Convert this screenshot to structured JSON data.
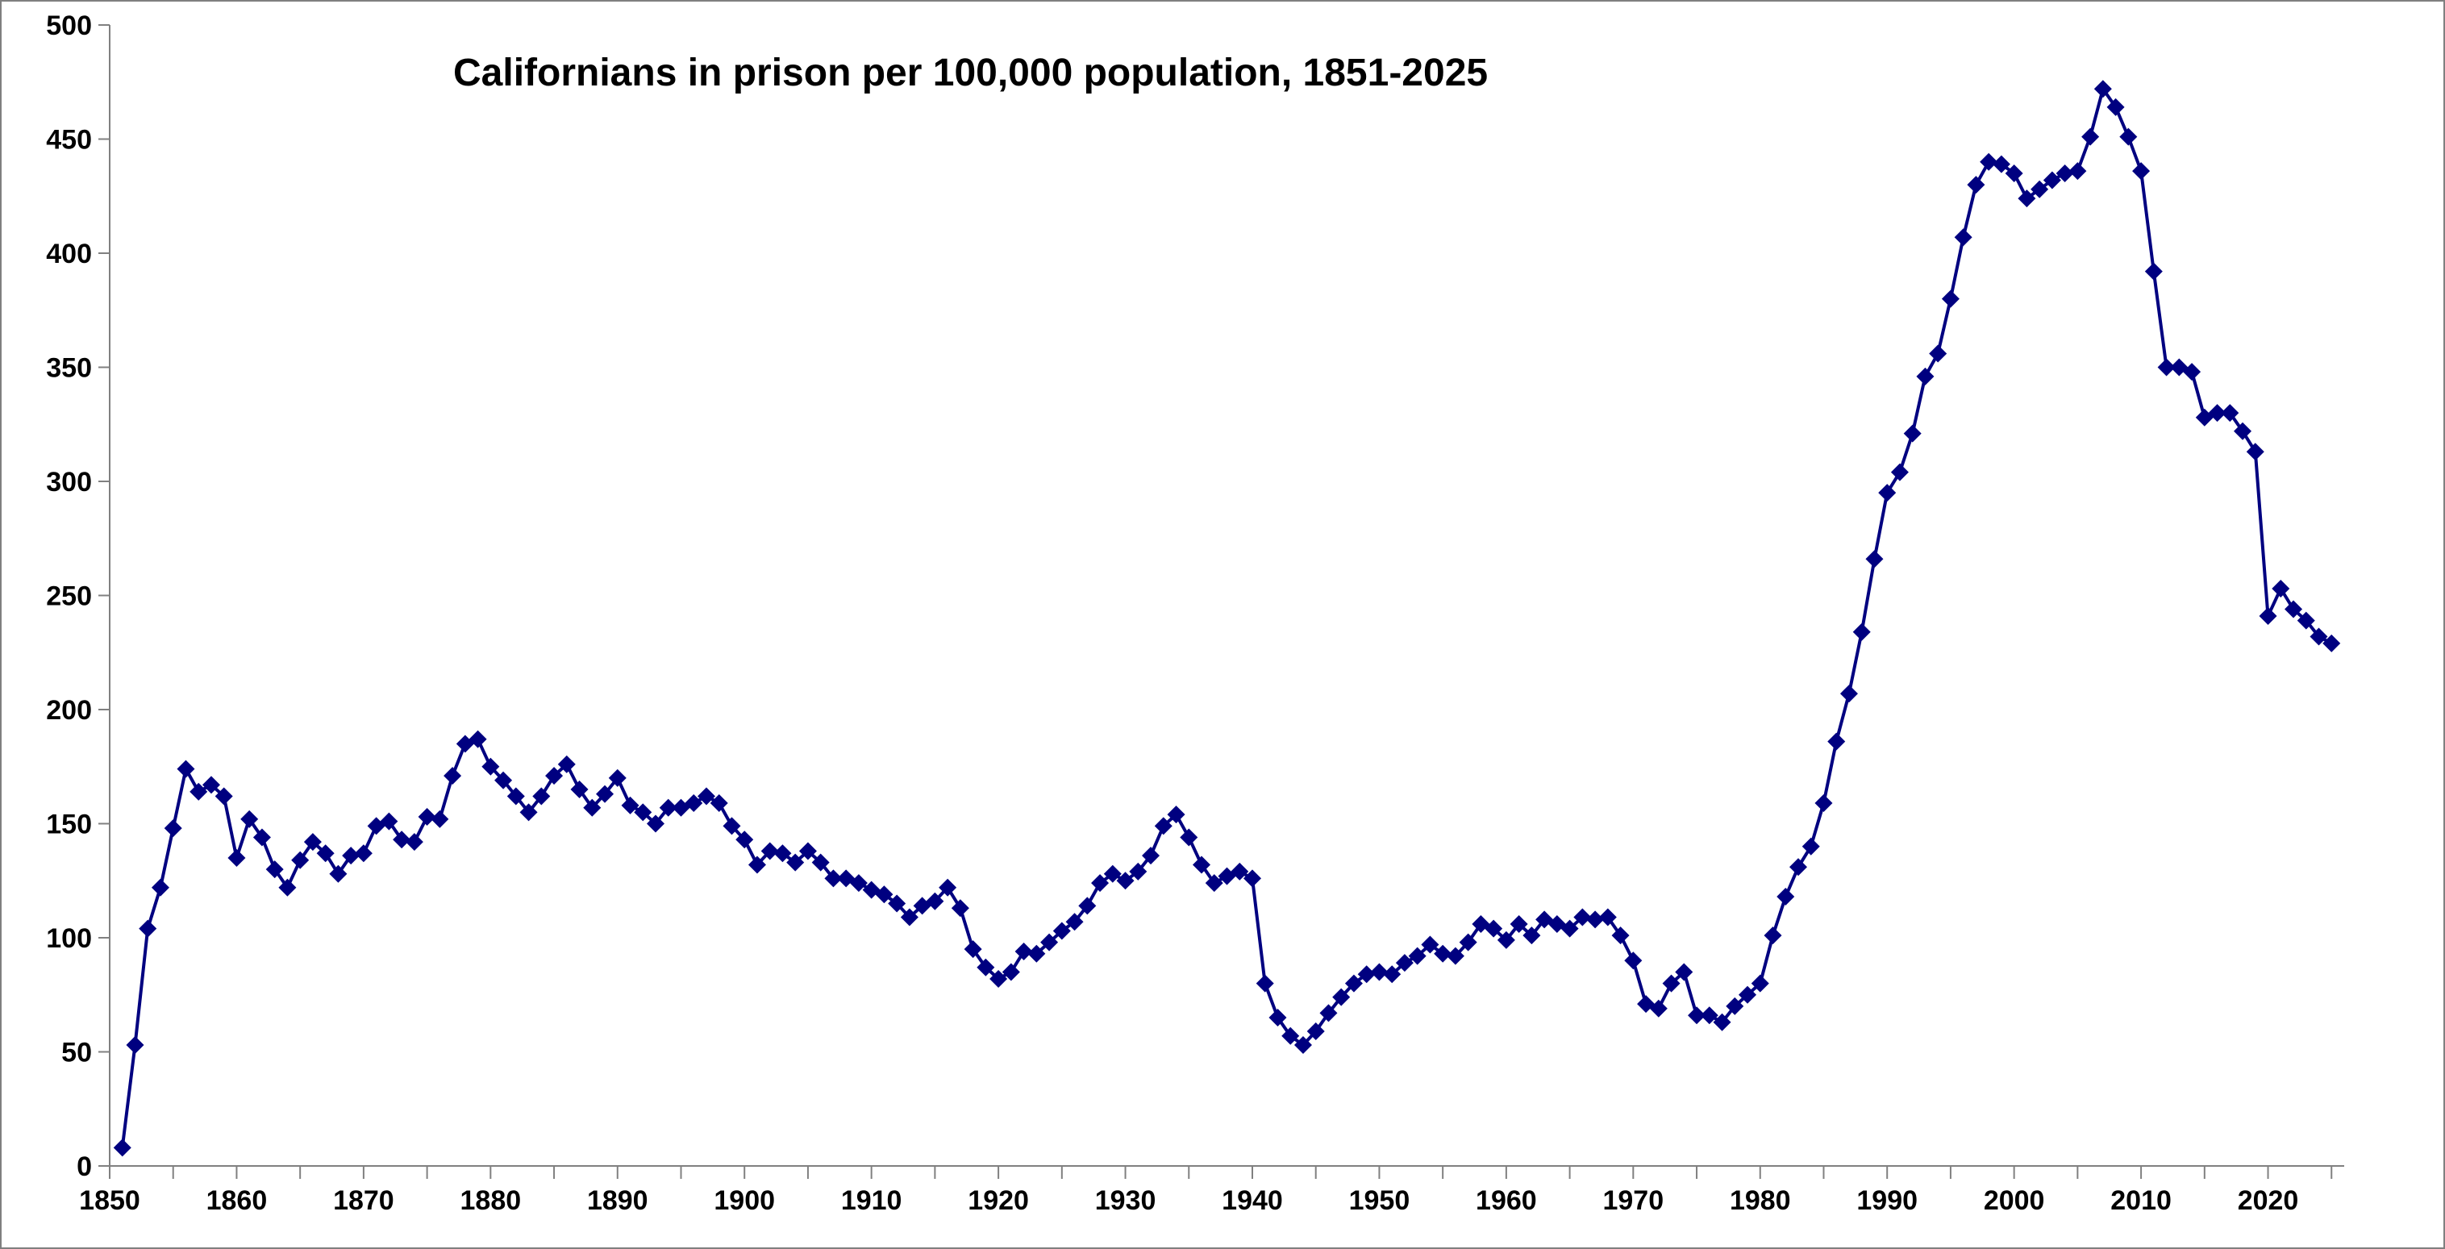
{
  "chart_data": {
    "type": "line",
    "title": "Californians in prison per 100,000 population, 1851-2025",
    "xlabel": "",
    "ylabel": "",
    "xlim": [
      1850,
      2026
    ],
    "ylim": [
      0,
      500
    ],
    "x_ticks": [
      1850,
      1860,
      1870,
      1880,
      1890,
      1900,
      1910,
      1920,
      1930,
      1940,
      1950,
      1960,
      1970,
      1980,
      1990,
      2000,
      2010,
      2020
    ],
    "y_ticks": [
      0,
      50,
      100,
      150,
      200,
      250,
      300,
      350,
      400,
      450,
      500
    ],
    "x_tick_labels": [
      "1850",
      "1860",
      "1870",
      "1880",
      "1890",
      "1900",
      "1910",
      "1920",
      "1930",
      "1940",
      "1950",
      "1960",
      "1970",
      "1980",
      "1990",
      "2000",
      "2010",
      "2020"
    ],
    "y_tick_labels": [
      "0",
      "50",
      "100",
      "150",
      "200",
      "250",
      "300",
      "350",
      "400",
      "450",
      "500"
    ],
    "grid": false,
    "legend": "none",
    "line_color": "#000080",
    "marker": "diamond",
    "series": [
      {
        "x": [
          1851,
          1852,
          1853,
          1854,
          1855,
          1856,
          1857,
          1858,
          1859,
          1860,
          1861,
          1862,
          1863,
          1864,
          1865,
          1866,
          1867,
          1868,
          1869,
          1870,
          1871,
          1872,
          1873,
          1874,
          1875,
          1876,
          1877,
          1878,
          1879,
          1880,
          1881,
          1882,
          1883,
          1884,
          1885,
          1886,
          1887,
          1888,
          1889,
          1890,
          1891,
          1892,
          1893,
          1894,
          1895,
          1896,
          1897,
          1898,
          1899,
          1900,
          1901,
          1902,
          1903,
          1904,
          1905,
          1906,
          1907,
          1908,
          1909,
          1910,
          1911,
          1912,
          1913,
          1914,
          1915,
          1916,
          1917,
          1918,
          1919,
          1920,
          1921,
          1922,
          1923,
          1924,
          1925,
          1926,
          1927,
          1928,
          1929,
          1930,
          1931,
          1932,
          1933,
          1934,
          1935,
          1936,
          1937,
          1938,
          1939,
          1940,
          1941,
          1942,
          1943,
          1944,
          1945,
          1946,
          1947,
          1948,
          1949,
          1950,
          1951,
          1952,
          1953,
          1954,
          1955,
          1956,
          1957,
          1958,
          1959,
          1960,
          1961,
          1962,
          1963,
          1964,
          1965,
          1966,
          1967,
          1968,
          1969,
          1970,
          1971,
          1972,
          1973,
          1974,
          1975,
          1976,
          1977,
          1978,
          1979,
          1980,
          1981,
          1982,
          1983,
          1984,
          1985,
          1986,
          1987,
          1988,
          1989,
          1990,
          1991,
          1992,
          1993,
          1994,
          1995,
          1996,
          1997,
          1998,
          1999,
          2000,
          2001,
          2002,
          2003,
          2004,
          2005,
          2006,
          2007,
          2008,
          2009,
          2010,
          2011,
          2012,
          2013,
          2014,
          2015,
          2016,
          2017,
          2018,
          2019,
          2020,
          2021,
          2022,
          2023,
          2024,
          2025
        ],
        "values": [
          8,
          53,
          104,
          122,
          148,
          174,
          164,
          167,
          162,
          135,
          152,
          144,
          130,
          122,
          134,
          142,
          137,
          128,
          136,
          137,
          149,
          151,
          143,
          142,
          153,
          152,
          171,
          185,
          187,
          175,
          169,
          162,
          155,
          162,
          171,
          176,
          165,
          157,
          163,
          170,
          158,
          155,
          150,
          157,
          157,
          159,
          162,
          159,
          149,
          143,
          132,
          138,
          137,
          133,
          138,
          133,
          126,
          126,
          124,
          121,
          119,
          115,
          109,
          114,
          116,
          122,
          113,
          95,
          87,
          82,
          85,
          94,
          93,
          98,
          103,
          107,
          114,
          124,
          128,
          125,
          129,
          136,
          149,
          154,
          144,
          132,
          124,
          127,
          129,
          126,
          80,
          65,
          57,
          53,
          59,
          67,
          74,
          80,
          84,
          85,
          84,
          89,
          92,
          97,
          93,
          92,
          98,
          106,
          104,
          99,
          106,
          101,
          108,
          106,
          104,
          109,
          108,
          109,
          101,
          90,
          71,
          69,
          80,
          85,
          66,
          66,
          63,
          70,
          75,
          80,
          101,
          118,
          131,
          140,
          159,
          186,
          207,
          234,
          266,
          295,
          304,
          321,
          346,
          356,
          380,
          407,
          430,
          440,
          439,
          435,
          424,
          428,
          432,
          435,
          436,
          451,
          472,
          464,
          451,
          436,
          392,
          350,
          350,
          348,
          328,
          330,
          330,
          322,
          313,
          241,
          253,
          244,
          239,
          232,
          229
        ]
      }
    ]
  }
}
